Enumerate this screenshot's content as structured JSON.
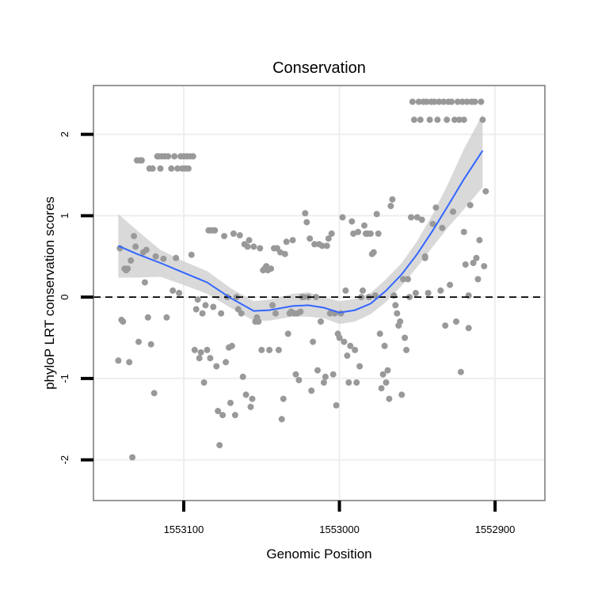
{
  "chart_data": {
    "type": "scatter",
    "title": "Conservation",
    "xlabel": "Genomic Position",
    "ylabel": "phyloP LRT conservation scores",
    "x_reversed": true,
    "xlim": [
      1553158,
      1552868
    ],
    "ylim": [
      -2.5,
      2.6
    ],
    "x_ticks": [
      {
        "value": 1553100,
        "label": "1553100"
      },
      {
        "value": 1553000,
        "label": "1553000"
      },
      {
        "value": 1552900,
        "label": "1552900"
      }
    ],
    "y_ticks": [
      {
        "value": -2,
        "label": "-2"
      },
      {
        "value": -1,
        "label": "-1"
      },
      {
        "value": 0,
        "label": "0"
      },
      {
        "value": 1,
        "label": "1"
      },
      {
        "value": 2,
        "label": "2"
      }
    ],
    "reference_line": {
      "y": 0,
      "style": "dashed"
    },
    "grid": true,
    "colors": {
      "points": "#999999",
      "smooth": "#3366ff",
      "band": "#cccccc",
      "panel_border": "#777777",
      "grid": "#eeeeee"
    },
    "series": [
      {
        "kind": "points",
        "points": [
          [
            1553142,
            -0.78
          ],
          [
            1553141,
            0.6
          ],
          [
            1553140,
            -0.28
          ],
          [
            1553139,
            -0.3
          ],
          [
            1553138,
            0.35
          ],
          [
            1553137,
            0.33
          ],
          [
            1553136,
            0.35
          ],
          [
            1553135,
            -0.8
          ],
          [
            1553134,
            0.45
          ],
          [
            1553133,
            -1.97
          ],
          [
            1553132,
            0.75
          ],
          [
            1553131,
            0.62
          ],
          [
            1553130,
            1.68
          ],
          [
            1553129,
            -0.55
          ],
          [
            1553128,
            1.68
          ],
          [
            1553127,
            1.68
          ],
          [
            1553126,
            0.55
          ],
          [
            1553125,
            0.18
          ],
          [
            1553124,
            0.58
          ],
          [
            1553123,
            -0.25
          ],
          [
            1553122,
            1.58
          ],
          [
            1553121,
            -0.58
          ],
          [
            1553120,
            1.58
          ],
          [
            1553119,
            -1.18
          ],
          [
            1553118,
            0.5
          ],
          [
            1553117,
            1.73
          ],
          [
            1553116,
            1.73
          ],
          [
            1553115,
            1.58
          ],
          [
            1553114,
            1.73
          ],
          [
            1553113,
            0.47
          ],
          [
            1553112,
            1.73
          ],
          [
            1553111,
            -0.25
          ],
          [
            1553110,
            1.73
          ],
          [
            1553108,
            1.58
          ],
          [
            1553107,
            0.08
          ],
          [
            1553106,
            1.73
          ],
          [
            1553105,
            0.48
          ],
          [
            1553104,
            1.58
          ],
          [
            1553103,
            0.05
          ],
          [
            1553102,
            1.73
          ],
          [
            1553101,
            1.58
          ],
          [
            1553100,
            1.73
          ],
          [
            1553099,
            1.58
          ],
          [
            1553098,
            1.73
          ],
          [
            1553097,
            1.58
          ],
          [
            1553096,
            1.73
          ],
          [
            1553095,
            0.52
          ],
          [
            1553094,
            1.73
          ],
          [
            1553093,
            -0.65
          ],
          [
            1553092,
            -0.15
          ],
          [
            1553091,
            -0.03
          ],
          [
            1553090,
            -0.75
          ],
          [
            1553089,
            -0.68
          ],
          [
            1553088,
            -0.2
          ],
          [
            1553087,
            -1.05
          ],
          [
            1553086,
            -0.1
          ],
          [
            1553085,
            -0.65
          ],
          [
            1553084,
            0.82
          ],
          [
            1553083,
            -0.75
          ],
          [
            1553082,
            0.82
          ],
          [
            1553081,
            -0.12
          ],
          [
            1553080,
            0.82
          ],
          [
            1553079,
            -0.85
          ],
          [
            1553078,
            -1.4
          ],
          [
            1553077,
            -1.82
          ],
          [
            1553076,
            -0.2
          ],
          [
            1553075,
            -1.45
          ],
          [
            1553074,
            0.75
          ],
          [
            1553073,
            -0.8
          ],
          [
            1553072,
            0.0
          ],
          [
            1553071,
            -0.62
          ],
          [
            1553070,
            -1.3
          ],
          [
            1553069,
            -0.6
          ],
          [
            1553068,
            0.78
          ],
          [
            1553067,
            -1.45
          ],
          [
            1553066,
            0.0
          ],
          [
            1553065,
            -0.15
          ],
          [
            1553064,
            0.76
          ],
          [
            1553063,
            -0.2
          ],
          [
            1553062,
            -0.98
          ],
          [
            1553061,
            0.65
          ],
          [
            1553060,
            -1.2
          ],
          [
            1553059,
            0.62
          ],
          [
            1553058,
            0.7
          ],
          [
            1553057,
            -1.35
          ],
          [
            1553056,
            -1.25
          ],
          [
            1553055,
            0.62
          ],
          [
            1553054,
            -0.3
          ],
          [
            1553053,
            -0.25
          ],
          [
            1553052,
            -0.3
          ],
          [
            1553051,
            0.6
          ],
          [
            1553050,
            -0.65
          ],
          [
            1553049,
            0.33
          ],
          [
            1553048,
            0.35
          ],
          [
            1553047,
            0.38
          ],
          [
            1553046,
            0.33
          ],
          [
            1553045,
            -0.65
          ],
          [
            1553044,
            0.35
          ],
          [
            1553043,
            -0.1
          ],
          [
            1553042,
            0.6
          ],
          [
            1553041,
            -0.2
          ],
          [
            1553040,
            0.6
          ],
          [
            1553039,
            -0.65
          ],
          [
            1553038,
            0.55
          ],
          [
            1553037,
            -1.5
          ],
          [
            1553036,
            -1.25
          ],
          [
            1553035,
            0.53
          ],
          [
            1553034,
            0.68
          ],
          [
            1553033,
            -0.45
          ],
          [
            1553032,
            -0.2
          ],
          [
            1553031,
            -0.18
          ],
          [
            1553030,
            0.7
          ],
          [
            1553029,
            -0.2
          ],
          [
            1553028,
            -0.95
          ],
          [
            1553027,
            -0.2
          ],
          [
            1553026,
            -1.02
          ],
          [
            1553025,
            -0.18
          ],
          [
            1553024,
            0.0
          ],
          [
            1553023,
            0.0
          ],
          [
            1553022,
            1.03
          ],
          [
            1553021,
            0.92
          ],
          [
            1553020,
            0.0
          ],
          [
            1553019,
            0.72
          ],
          [
            1553018,
            -1.15
          ],
          [
            1553017,
            -0.55
          ],
          [
            1553016,
            0.65
          ],
          [
            1553015,
            0.0
          ],
          [
            1553014,
            -0.9
          ],
          [
            1553013,
            0.65
          ],
          [
            1553012,
            -0.3
          ],
          [
            1553011,
            0.63
          ],
          [
            1553010,
            -1.05
          ],
          [
            1553009,
            -0.98
          ],
          [
            1553008,
            0.63
          ],
          [
            1553007,
            0.72
          ],
          [
            1553006,
            -0.2
          ],
          [
            1553005,
            0.78
          ],
          [
            1553004,
            -0.95
          ],
          [
            1553003,
            -0.2
          ],
          [
            1553002,
            -1.33
          ],
          [
            1553001,
            -0.45
          ],
          [
            1553000,
            -0.5
          ],
          [
            1552999,
            -0.2
          ],
          [
            1552998,
            0.98
          ],
          [
            1552997,
            -0.55
          ],
          [
            1552996,
            0.08
          ],
          [
            1552995,
            -0.72
          ],
          [
            1552994,
            -1.05
          ],
          [
            1552993,
            -0.6
          ],
          [
            1552992,
            0.93
          ],
          [
            1552991,
            0.78
          ],
          [
            1552990,
            -0.65
          ],
          [
            1552989,
            -1.05
          ],
          [
            1552988,
            0.8
          ],
          [
            1552987,
            -0.85
          ],
          [
            1552986,
            0.0
          ],
          [
            1552985,
            0.08
          ],
          [
            1552984,
            0.88
          ],
          [
            1552983,
            0.78
          ],
          [
            1552982,
            0.78
          ],
          [
            1552981,
            0.0
          ],
          [
            1552980,
            0.78
          ],
          [
            1552979,
            0.53
          ],
          [
            1552978,
            0.55
          ],
          [
            1552977,
            0.02
          ],
          [
            1552976,
            1.02
          ],
          [
            1552975,
            0.78
          ],
          [
            1552974,
            -0.45
          ],
          [
            1552973,
            -1.12
          ],
          [
            1552972,
            -0.95
          ],
          [
            1552971,
            -0.6
          ],
          [
            1552970,
            -1.05
          ],
          [
            1552969,
            -0.9
          ],
          [
            1552968,
            -1.25
          ],
          [
            1552967,
            1.12
          ],
          [
            1552966,
            1.2
          ],
          [
            1552965,
            0.02
          ],
          [
            1552964,
            -0.1
          ],
          [
            1552963,
            -0.2
          ],
          [
            1552962,
            -0.35
          ],
          [
            1552961,
            -0.3
          ],
          [
            1552960,
            -1.2
          ],
          [
            1552959,
            0.22
          ],
          [
            1552958,
            -0.5
          ],
          [
            1552957,
            -0.65
          ],
          [
            1552956,
            0.22
          ],
          [
            1552955,
            0.0
          ],
          [
            1552954,
            0.98
          ],
          [
            1552953,
            2.4
          ],
          [
            1552952,
            2.18
          ],
          [
            1552951,
            0.05
          ],
          [
            1552950,
            0.98
          ],
          [
            1552949,
            2.4
          ],
          [
            1552948,
            2.18
          ],
          [
            1552947,
            0.95
          ],
          [
            1552946,
            2.4
          ],
          [
            1552945,
            0.5
          ],
          [
            1552944,
            2.4
          ],
          [
            1552943,
            0.05
          ],
          [
            1552942,
            2.18
          ],
          [
            1552941,
            2.4
          ],
          [
            1552940,
            0.9
          ],
          [
            1552939,
            2.4
          ],
          [
            1552938,
            1.1
          ],
          [
            1552937,
            2.18
          ],
          [
            1552936,
            2.4
          ],
          [
            1552935,
            0.08
          ],
          [
            1552934,
            0.85
          ],
          [
            1552933,
            2.4
          ],
          [
            1552932,
            -0.35
          ],
          [
            1552931,
            2.18
          ],
          [
            1552930,
            2.4
          ],
          [
            1552929,
            0.15
          ],
          [
            1552928,
            2.4
          ],
          [
            1552927,
            1.05
          ],
          [
            1552926,
            2.18
          ],
          [
            1552925,
            -0.3
          ],
          [
            1552924,
            2.4
          ],
          [
            1552923,
            2.18
          ],
          [
            1552922,
            -0.92
          ],
          [
            1552921,
            2.4
          ],
          [
            1552920,
            2.18
          ],
          [
            1552919,
            0.4
          ],
          [
            1552918,
            2.4
          ],
          [
            1552917,
            -0.38
          ],
          [
            1552916,
            1.13
          ],
          [
            1552915,
            2.4
          ],
          [
            1552914,
            0.42
          ],
          [
            1552913,
            2.4
          ],
          [
            1552912,
            0.48
          ],
          [
            1552911,
            0.22
          ],
          [
            1552910,
            0.7
          ],
          [
            1552909,
            2.4
          ],
          [
            1552908,
            2.18
          ],
          [
            1552907,
            0.38
          ],
          [
            1552906,
            1.3
          ],
          [
            1552917,
            0.02
          ],
          [
            1552920,
            0.8
          ],
          [
            1552945,
            0.48
          ]
        ]
      },
      {
        "kind": "smooth",
        "points": [
          [
            1553142,
            0.63
          ],
          [
            1553130,
            0.53
          ],
          [
            1553115,
            0.42
          ],
          [
            1553100,
            0.3
          ],
          [
            1553085,
            0.18
          ],
          [
            1553070,
            -0.01
          ],
          [
            1553055,
            -0.17
          ],
          [
            1553045,
            -0.16
          ],
          [
            1553030,
            -0.11
          ],
          [
            1553020,
            -0.1
          ],
          [
            1553010,
            -0.13
          ],
          [
            1553000,
            -0.19
          ],
          [
            1552990,
            -0.16
          ],
          [
            1552980,
            -0.08
          ],
          [
            1552970,
            0.08
          ],
          [
            1552960,
            0.28
          ],
          [
            1552950,
            0.53
          ],
          [
            1552940,
            0.82
          ],
          [
            1552930,
            1.13
          ],
          [
            1552920,
            1.45
          ],
          [
            1552908,
            1.8
          ]
        ]
      },
      {
        "kind": "confidence_band",
        "points": [
          [
            1553142,
            0.24,
            1.02
          ],
          [
            1553130,
            0.24,
            0.82
          ],
          [
            1553115,
            0.25,
            0.58
          ],
          [
            1553100,
            0.15,
            0.44
          ],
          [
            1553085,
            0.04,
            0.32
          ],
          [
            1553070,
            -0.13,
            0.11
          ],
          [
            1553055,
            -0.29,
            -0.05
          ],
          [
            1553045,
            -0.29,
            -0.03
          ],
          [
            1553030,
            -0.24,
            0.04
          ],
          [
            1553020,
            -0.24,
            0.06
          ],
          [
            1553010,
            -0.26,
            0.0
          ],
          [
            1553000,
            -0.33,
            -0.05
          ],
          [
            1552990,
            -0.3,
            -0.02
          ],
          [
            1552980,
            -0.21,
            0.05
          ],
          [
            1552970,
            -0.06,
            0.22
          ],
          [
            1552960,
            0.14,
            0.42
          ],
          [
            1552950,
            0.37,
            0.69
          ],
          [
            1552940,
            0.62,
            1.02
          ],
          [
            1552930,
            0.86,
            1.4
          ],
          [
            1552920,
            1.08,
            1.82
          ],
          [
            1552908,
            1.35,
            2.25
          ]
        ]
      }
    ]
  }
}
